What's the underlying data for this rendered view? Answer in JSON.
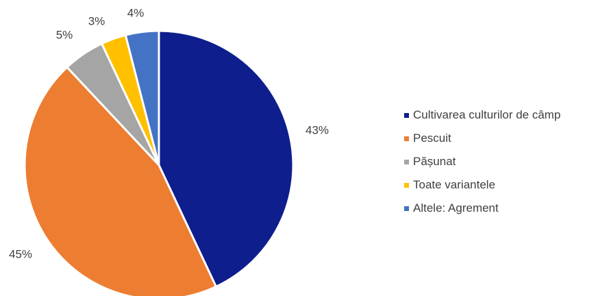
{
  "chart_data": {
    "type": "pie",
    "start_angle": "top",
    "direction": "clockwise",
    "legend_position": "right",
    "slices": [
      {
        "label": "Cultivarea culturilor de câmp",
        "value": 43,
        "display": "43%",
        "color": "#0E1E8C"
      },
      {
        "label": "Pescuit",
        "value": 45,
        "display": "45%",
        "color": "#ED7D31"
      },
      {
        "label": "Pășunat",
        "value": 5,
        "display": "5%",
        "color": "#A5A5A5"
      },
      {
        "label": "Toate variantele",
        "value": 3,
        "display": "3%",
        "color": "#FFC000"
      },
      {
        "label": "Altele: Agrement",
        "value": 4,
        "display": "4%",
        "color": "#4472C4"
      }
    ]
  }
}
